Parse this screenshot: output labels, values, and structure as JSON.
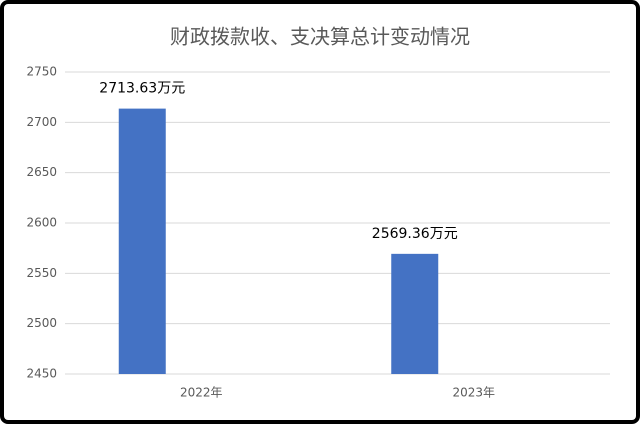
{
  "chart_data": {
    "type": "bar",
    "title": "财政拨款收、支决算总计变动情况",
    "categories": [
      "2022年",
      "2023年"
    ],
    "values": [
      2713.63,
      2569.36
    ],
    "value_labels": [
      "2713.63万元",
      "2569.36万元"
    ],
    "color": "#4472c4",
    "ylim": [
      2450,
      2750
    ],
    "yticks": [
      2450,
      2500,
      2550,
      2600,
      2650,
      2700,
      2750
    ],
    "grid": true
  }
}
